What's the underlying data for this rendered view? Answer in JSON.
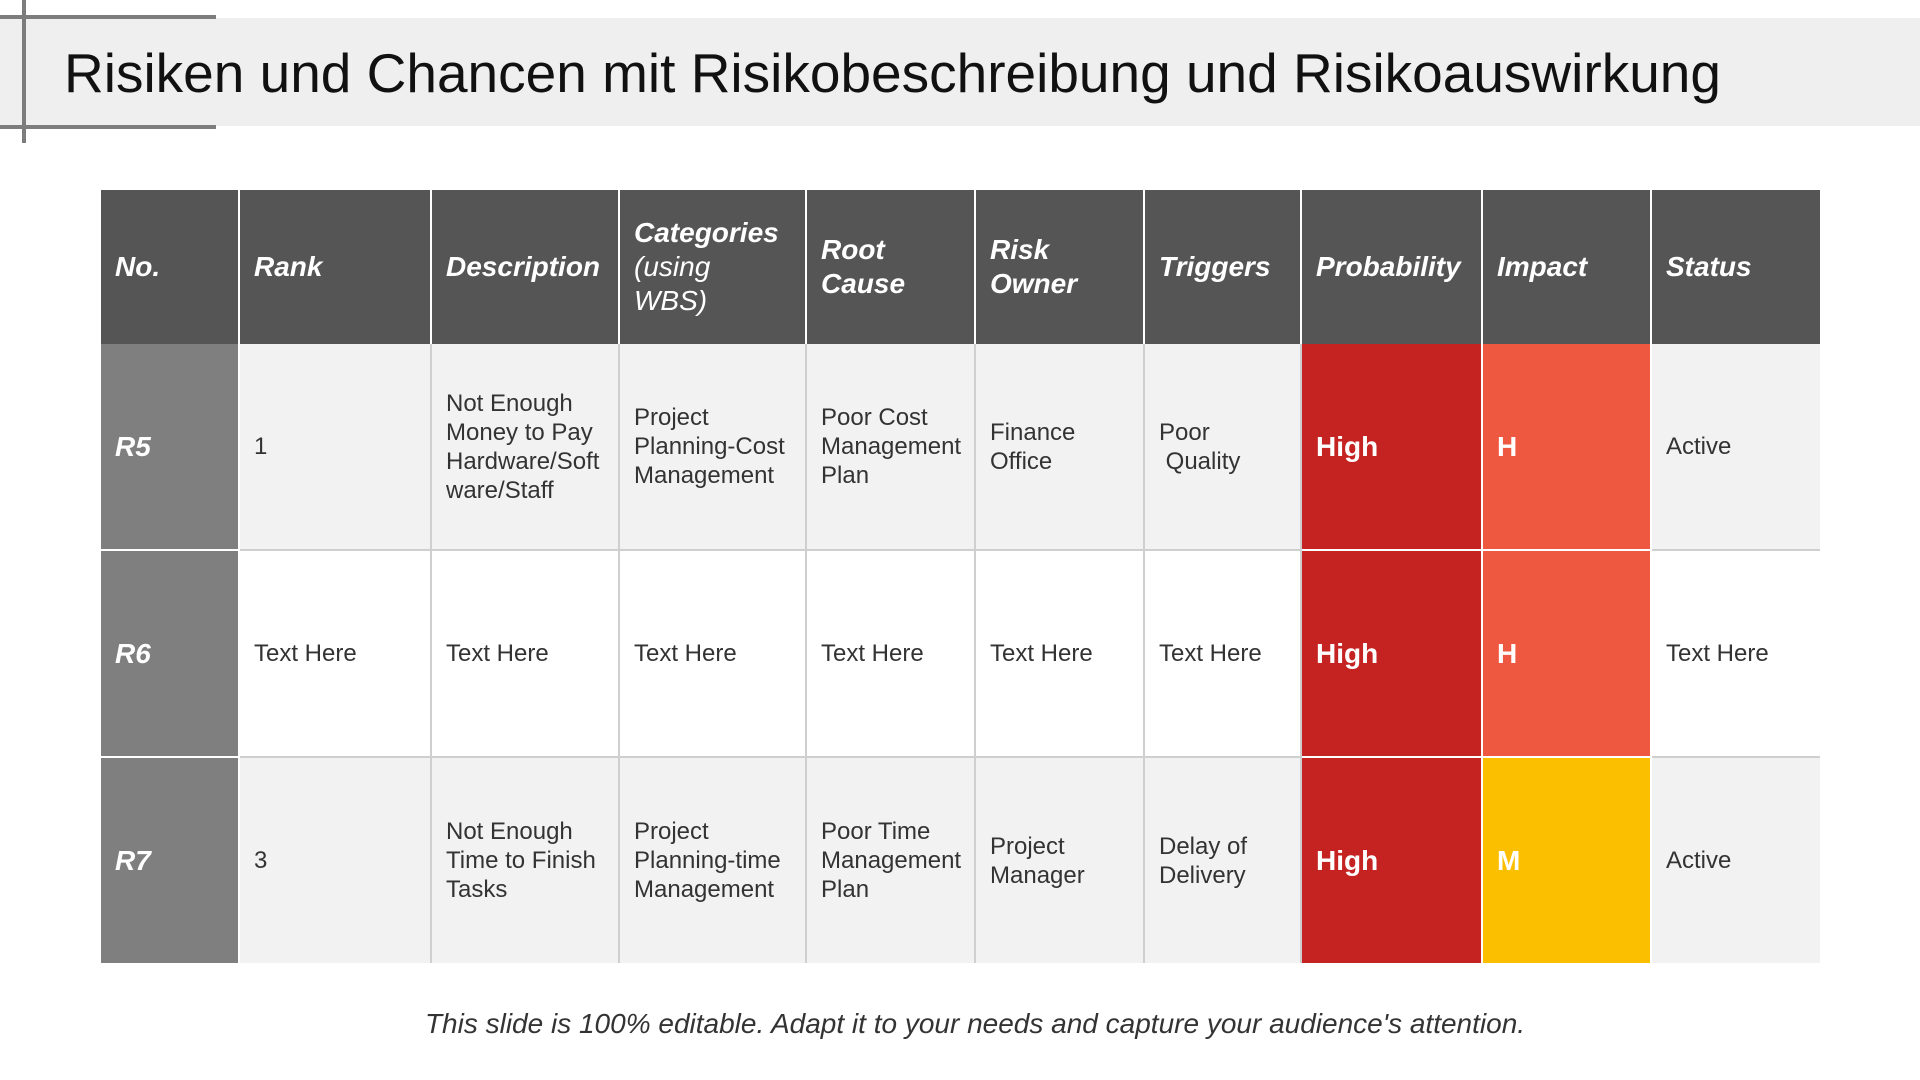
{
  "title": "Risiken und Chancen mit Risikobeschreibung und Risikoauswirkung",
  "headers": {
    "no": "No.",
    "rank": "Rank",
    "description": "Description",
    "categories": [
      "Categories",
      "(using WBS)"
    ],
    "root_cause": [
      "Root",
      "Cause"
    ],
    "risk_owner": [
      "Risk",
      "Owner"
    ],
    "triggers": "Triggers",
    "probability": "Probability",
    "impact": "Impact",
    "status": "Status"
  },
  "rows": [
    {
      "no": "R5",
      "rank": "1",
      "description": [
        "Not Enough",
        "Money to Pay",
        "Hardware/Soft",
        "ware/Staff"
      ],
      "categories": [
        "Project",
        "Planning-Cost",
        "Management"
      ],
      "root_cause": [
        "Poor Cost",
        "Management",
        "Plan"
      ],
      "risk_owner": [
        "Finance",
        "Office"
      ],
      "triggers": [
        "Poor",
        " Quality"
      ],
      "probability": "High",
      "probability_color": "#c52322",
      "impact": "H",
      "impact_color": "#ef5840",
      "status": "Active"
    },
    {
      "no": "R6",
      "rank": "Text Here",
      "description": [
        "Text Here"
      ],
      "categories": [
        "Text Here"
      ],
      "root_cause": [
        "Text Here"
      ],
      "risk_owner": [
        "Text Here"
      ],
      "triggers": [
        "Text Here"
      ],
      "probability": "High",
      "probability_color": "#c52322",
      "impact": "H",
      "impact_color": "#ef5840",
      "status": "Text Here"
    },
    {
      "no": "R7",
      "rank": "3",
      "description": [
        "Not Enough",
        "Time to Finish",
        "Tasks"
      ],
      "categories": [
        "Project",
        "Planning-time",
        "Management"
      ],
      "root_cause": [
        "Poor Time",
        "Management",
        "Plan"
      ],
      "risk_owner": [
        "Project",
        "Manager"
      ],
      "triggers": [
        "Delay of",
        "Delivery"
      ],
      "probability": "High",
      "probability_color": "#c52322",
      "impact": "M",
      "impact_color": "#fcbf00",
      "status": "Active"
    }
  ],
  "footer": "This slide is 100% editable. Adapt it to your needs and capture your audience's attention."
}
